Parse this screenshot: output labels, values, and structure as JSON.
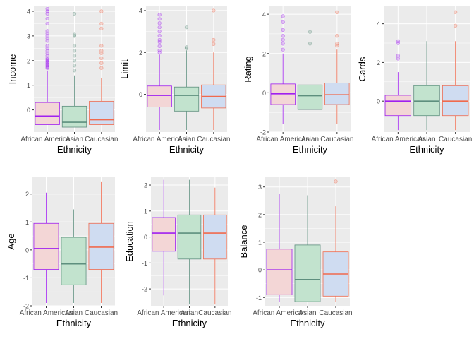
{
  "groups": [
    "African American",
    "Asian",
    "Caucasian"
  ],
  "colors": {
    "panel_bg": "#EBEBEB",
    "grid": "#FFFFFF",
    "groups": [
      "#A020F0",
      "#5E8F7E",
      "#F06A4E"
    ],
    "fills": [
      "#F3D6D6",
      "#C2E3CE",
      "#CFDCF1"
    ]
  },
  "chart_data": [
    {
      "type": "boxplot",
      "xlabel": "Ethnicity",
      "ylabel": "Income",
      "ylim": [
        -0.9,
        4.2
      ],
      "yticks": [
        0,
        1,
        2,
        3,
        4
      ],
      "boxes": [
        {
          "lower": -0.6,
          "q1": -0.6,
          "median": -0.25,
          "q3": 0.3,
          "upper": 1.6,
          "outliers": [
            1.7,
            1.75,
            1.8,
            1.85,
            1.9,
            1.95,
            2.0,
            2.05,
            2.1,
            2.2,
            2.3,
            2.4,
            2.5,
            2.6,
            2.8,
            2.9,
            3.0,
            3.1,
            3.2,
            3.5,
            3.7,
            3.9,
            4.0,
            4.1
          ]
        },
        {
          "lower": -0.7,
          "q1": -0.7,
          "median": -0.5,
          "q3": 0.15,
          "upper": 1.4,
          "outliers": [
            1.6,
            1.8,
            2.0,
            2.2,
            2.4,
            2.6,
            3.0,
            3.05,
            3.9
          ]
        },
        {
          "lower": -0.6,
          "q1": -0.6,
          "median": -0.4,
          "q3": 0.35,
          "upper": 1.3,
          "outliers": [
            1.7,
            1.9,
            2.1,
            2.3,
            2.4,
            2.6,
            3.3,
            3.5,
            4.0
          ]
        }
      ]
    },
    {
      "type": "boxplot",
      "xlabel": "Ethnicity",
      "ylabel": "Limit",
      "ylim": [
        -1.8,
        4.2
      ],
      "yticks": [
        0,
        2,
        4
      ],
      "boxes": [
        {
          "lower": -1.7,
          "q1": -0.6,
          "median": -0.05,
          "q3": 0.4,
          "upper": 1.9,
          "outliers": [
            2.0,
            2.1,
            2.3,
            2.5,
            2.6,
            2.8,
            3.0,
            3.2,
            3.4,
            3.6,
            3.8
          ]
        },
        {
          "lower": -1.7,
          "q1": -0.8,
          "median": -0.05,
          "q3": 0.35,
          "upper": 2.1,
          "outliers": [
            2.2,
            2.25,
            3.2
          ]
        },
        {
          "lower": -1.7,
          "q1": -0.65,
          "median": -0.1,
          "q3": 0.45,
          "upper": 2.0,
          "outliers": [
            2.4,
            2.6,
            4.0
          ]
        }
      ]
    },
    {
      "type": "boxplot",
      "xlabel": "Ethnicity",
      "ylabel": "Rating",
      "ylim": [
        -2.0,
        4.4
      ],
      "yticks": [
        -2,
        0,
        2,
        4
      ],
      "boxes": [
        {
          "lower": -1.6,
          "q1": -0.6,
          "median": -0.05,
          "q3": 0.45,
          "upper": 2.0,
          "outliers": [
            2.2,
            2.5,
            2.7,
            2.9,
            3.2,
            3.6,
            3.9
          ]
        },
        {
          "lower": -1.5,
          "q1": -0.85,
          "median": -0.15,
          "q3": 0.4,
          "upper": 2.0,
          "outliers": [
            2.5,
            3.1
          ]
        },
        {
          "lower": -1.6,
          "q1": -0.6,
          "median": -0.1,
          "q3": 0.5,
          "upper": 2.2,
          "outliers": [
            2.4,
            2.5,
            2.9,
            4.1
          ]
        }
      ]
    },
    {
      "type": "boxplot",
      "xlabel": "Ethnicity",
      "ylabel": "Cards",
      "ylim": [
        -1.6,
        4.9
      ],
      "yticks": [
        0,
        2,
        4
      ],
      "boxes": [
        {
          "lower": -1.5,
          "q1": -0.75,
          "median": 0.0,
          "q3": 0.3,
          "upper": 1.5,
          "outliers": [
            2.2,
            2.35,
            3.0,
            3.1
          ]
        },
        {
          "lower": -1.5,
          "q1": -0.75,
          "median": 0.0,
          "q3": 0.8,
          "upper": 3.1,
          "outliers": []
        },
        {
          "lower": -1.5,
          "q1": -0.75,
          "median": 0.0,
          "q3": 0.8,
          "upper": 3.1,
          "outliers": [
            3.9,
            4.6
          ]
        }
      ]
    },
    {
      "type": "boxplot",
      "xlabel": "Ethnicity",
      "ylabel": "Age",
      "ylim": [
        -2.0,
        2.6
      ],
      "yticks": [
        -2,
        -1,
        0,
        1,
        2
      ],
      "boxes": [
        {
          "lower": -1.9,
          "q1": -0.7,
          "median": 0.05,
          "q3": 0.95,
          "upper": 2.05,
          "outliers": []
        },
        {
          "lower": -1.9,
          "q1": -1.25,
          "median": -0.5,
          "q3": 0.45,
          "upper": 1.45,
          "outliers": []
        },
        {
          "lower": -1.9,
          "q1": -0.7,
          "median": 0.1,
          "q3": 0.95,
          "upper": 2.45,
          "outliers": []
        }
      ]
    },
    {
      "type": "boxplot",
      "xlabel": "Ethnicity",
      "ylabel": "Education",
      "ylim": [
        -2.65,
        2.3
      ],
      "yticks": [
        -2,
        -1,
        0,
        1,
        2
      ],
      "boxes": [
        {
          "lower": -2.25,
          "q1": -0.55,
          "median": 0.15,
          "q3": 0.75,
          "upper": 2.2,
          "outliers": []
        },
        {
          "lower": -2.6,
          "q1": -0.85,
          "median": 0.15,
          "q3": 0.85,
          "upper": 2.2,
          "outliers": []
        },
        {
          "lower": -2.6,
          "q1": -0.85,
          "median": 0.15,
          "q3": 0.85,
          "upper": 1.9,
          "outliers": []
        }
      ]
    },
    {
      "type": "boxplot",
      "xlabel": "Ethnicity",
      "ylabel": "Balance",
      "ylim": [
        -1.3,
        3.35
      ],
      "yticks": [
        -1,
        0,
        1,
        2,
        3
      ],
      "boxes": [
        {
          "lower": -1.15,
          "q1": -0.9,
          "median": 0.0,
          "q3": 0.75,
          "upper": 2.75,
          "outliers": []
        },
        {
          "lower": -1.15,
          "q1": -1.15,
          "median": -0.35,
          "q3": 0.9,
          "upper": 2.7,
          "outliers": []
        },
        {
          "lower": -1.15,
          "q1": -0.95,
          "median": -0.15,
          "q3": 0.65,
          "upper": 2.3,
          "outliers": [
            3.2
          ]
        }
      ]
    }
  ]
}
